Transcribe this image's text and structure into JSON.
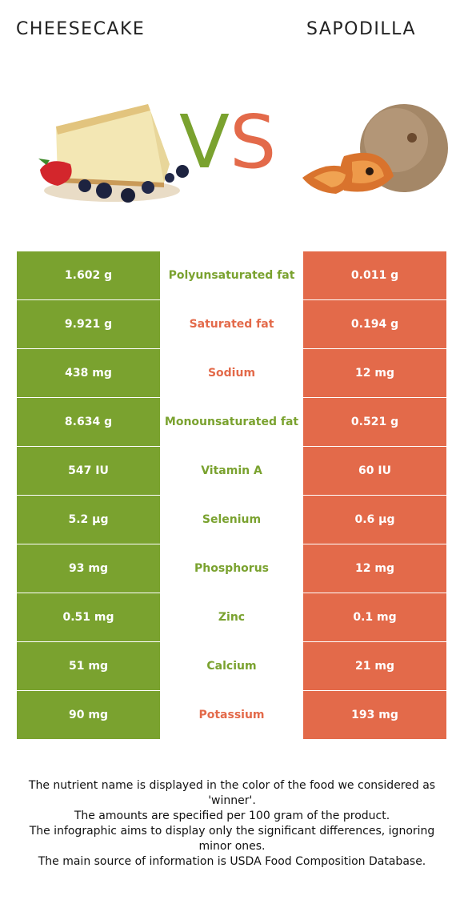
{
  "header": {
    "left_title": "CHEESECAKE",
    "right_title": "SAPODILLA",
    "vs_v": "V",
    "vs_s": "S"
  },
  "colors": {
    "winner_left": "#7aa22f",
    "winner_right": "#e36a4a"
  },
  "rows": [
    {
      "left": "1.602 g",
      "name": "Polyunsaturated fat",
      "right": "0.011 g",
      "winner": "left"
    },
    {
      "left": "9.921 g",
      "name": "Saturated fat",
      "right": "0.194 g",
      "winner": "right"
    },
    {
      "left": "438 mg",
      "name": "Sodium",
      "right": "12 mg",
      "winner": "right"
    },
    {
      "left": "8.634 g",
      "name": "Monounsaturated fat",
      "right": "0.521 g",
      "winner": "left"
    },
    {
      "left": "547 IU",
      "name": "Vitamin A",
      "right": "60 IU",
      "winner": "left"
    },
    {
      "left": "5.2 µg",
      "name": "Selenium",
      "right": "0.6 µg",
      "winner": "left"
    },
    {
      "left": "93 mg",
      "name": "Phosphorus",
      "right": "12 mg",
      "winner": "left"
    },
    {
      "left": "0.51 mg",
      "name": "Zinc",
      "right": "0.1 mg",
      "winner": "left"
    },
    {
      "left": "51 mg",
      "name": "Calcium",
      "right": "21 mg",
      "winner": "left"
    },
    {
      "left": "90 mg",
      "name": "Potassium",
      "right": "193 mg",
      "winner": "right"
    }
  ],
  "footer": {
    "line1": "The nutrient name is displayed in the color of the food we considered as 'winner'.",
    "line2": "The amounts are specified per 100 gram of the product.",
    "line3": "The infographic aims to display only the significant differences, ignoring minor ones.",
    "line4": "The main source of information is USDA Food Composition Database."
  }
}
